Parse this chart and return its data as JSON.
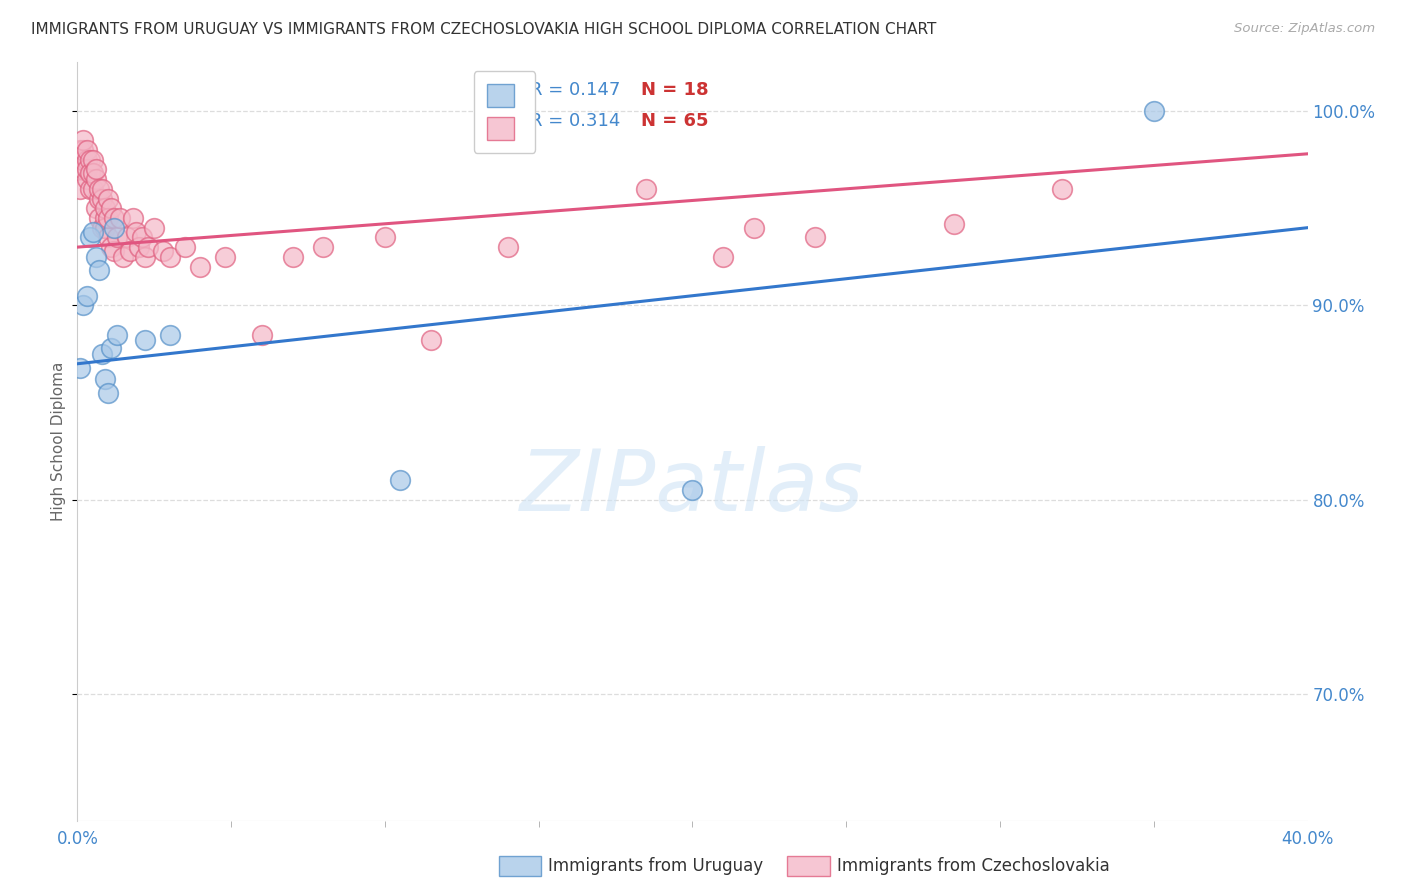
{
  "title": "IMMIGRANTS FROM URUGUAY VS IMMIGRANTS FROM CZECHOSLOVAKIA HIGH SCHOOL DIPLOMA CORRELATION CHART",
  "source": "Source: ZipAtlas.com",
  "xlabel_blue": "Immigrants from Uruguay",
  "xlabel_pink": "Immigrants from Czechoslovakia",
  "ylabel": "High School Diploma",
  "blue_R": 0.147,
  "blue_N": 18,
  "pink_R": 0.314,
  "pink_N": 65,
  "blue_color": "#a8c8e8",
  "pink_color": "#f4b8c8",
  "blue_edge_color": "#5590c8",
  "pink_edge_color": "#e06080",
  "blue_line_color": "#3377cc",
  "pink_line_color": "#e05580",
  "title_color": "#333333",
  "source_color": "#aaaaaa",
  "axis_label_color": "#4488cc",
  "ylabel_color": "#666666",
  "grid_color": "#dddddd",
  "watermark": "ZIPatlas",
  "watermark_color": "#d0e4f5",
  "xlim": [
    0.0,
    0.4
  ],
  "ylim": [
    0.635,
    1.025
  ],
  "xtick_positions": [
    0.0,
    0.4
  ],
  "xtick_labels": [
    "0.0%",
    "40.0%"
  ],
  "yticks": [
    0.7,
    0.8,
    0.9,
    1.0
  ],
  "blue_scatter_x": [
    0.001,
    0.002,
    0.003,
    0.004,
    0.005,
    0.006,
    0.007,
    0.008,
    0.009,
    0.01,
    0.011,
    0.012,
    0.013,
    0.022,
    0.03,
    0.105,
    0.35,
    0.2
  ],
  "blue_scatter_y": [
    0.868,
    0.9,
    0.905,
    0.935,
    0.938,
    0.925,
    0.918,
    0.875,
    0.862,
    0.855,
    0.878,
    0.94,
    0.885,
    0.882,
    0.885,
    0.81,
    1.0,
    0.805
  ],
  "pink_scatter_x": [
    0.001,
    0.001,
    0.001,
    0.002,
    0.002,
    0.002,
    0.002,
    0.003,
    0.003,
    0.003,
    0.003,
    0.004,
    0.004,
    0.004,
    0.005,
    0.005,
    0.005,
    0.006,
    0.006,
    0.006,
    0.007,
    0.007,
    0.007,
    0.008,
    0.008,
    0.008,
    0.009,
    0.009,
    0.009,
    0.01,
    0.01,
    0.01,
    0.011,
    0.011,
    0.012,
    0.012,
    0.013,
    0.014,
    0.015,
    0.016,
    0.017,
    0.018,
    0.019,
    0.02,
    0.021,
    0.022,
    0.023,
    0.025,
    0.028,
    0.03,
    0.035,
    0.04,
    0.048,
    0.06,
    0.07,
    0.08,
    0.1,
    0.115,
    0.14,
    0.185,
    0.21,
    0.22,
    0.24,
    0.285,
    0.32
  ],
  "pink_scatter_y": [
    0.96,
    0.975,
    0.98,
    0.97,
    0.975,
    0.98,
    0.985,
    0.965,
    0.975,
    0.98,
    0.97,
    0.96,
    0.975,
    0.968,
    0.96,
    0.975,
    0.968,
    0.95,
    0.965,
    0.97,
    0.955,
    0.96,
    0.945,
    0.955,
    0.94,
    0.96,
    0.945,
    0.94,
    0.95,
    0.935,
    0.955,
    0.945,
    0.93,
    0.95,
    0.945,
    0.928,
    0.935,
    0.945,
    0.925,
    0.935,
    0.928,
    0.945,
    0.938,
    0.93,
    0.935,
    0.925,
    0.93,
    0.94,
    0.928,
    0.925,
    0.93,
    0.92,
    0.925,
    0.885,
    0.925,
    0.93,
    0.935,
    0.882,
    0.93,
    0.96,
    0.925,
    0.94,
    0.935,
    0.942,
    0.96
  ],
  "blue_trend_x": [
    0.0,
    0.4
  ],
  "blue_trend_y": [
    0.87,
    0.94
  ],
  "pink_trend_x": [
    0.0,
    0.4
  ],
  "pink_trend_y": [
    0.93,
    0.978
  ],
  "legend_R_color": "#4488cc",
  "legend_N_color": "#cc3333",
  "figsize": [
    14.06,
    8.92
  ],
  "dpi": 100
}
